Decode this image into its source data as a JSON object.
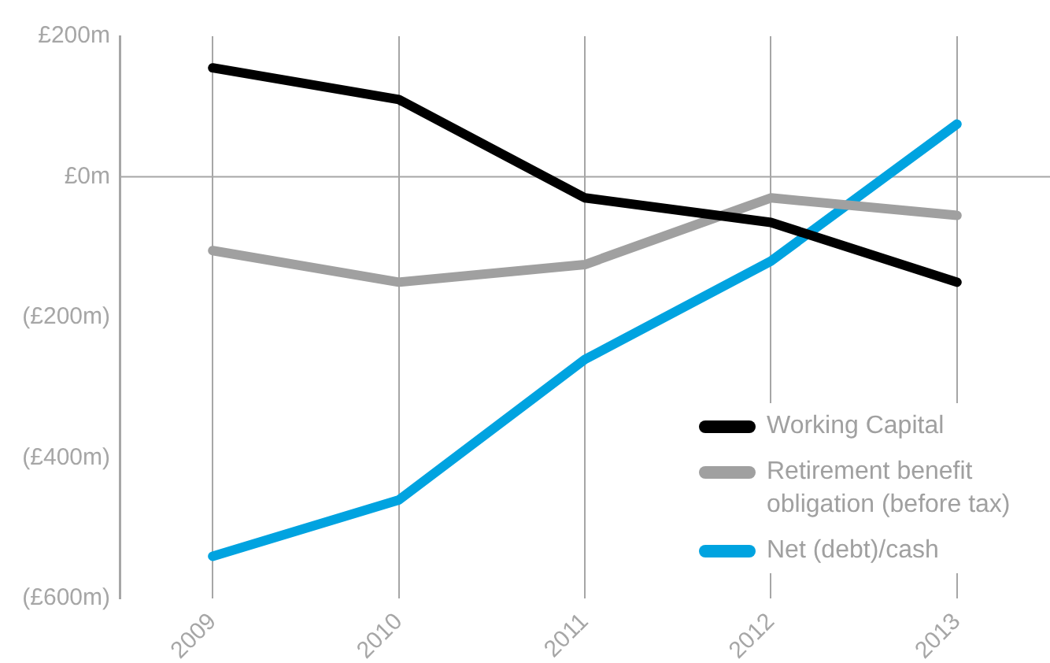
{
  "chart_data": {
    "type": "line",
    "categories": [
      "2009",
      "2010",
      "2011",
      "2012",
      "2013"
    ],
    "series": [
      {
        "name": "Working Capital",
        "color": "#000000",
        "values": [
          155,
          110,
          -30,
          -65,
          -150
        ]
      },
      {
        "name": "Retirement benefit obligation (before tax)",
        "color": "#a0a0a0",
        "values": [
          -105,
          -150,
          -125,
          -30,
          -55
        ]
      },
      {
        "name": "Net (debt)/cash",
        "color": "#00a3e0",
        "values": [
          -540,
          -460,
          -260,
          -120,
          75
        ]
      }
    ],
    "ylim": [
      -600,
      200
    ],
    "yticks": [
      {
        "value": 200,
        "label": "£200m"
      },
      {
        "value": 0,
        "label": "£0m"
      },
      {
        "value": -200,
        "label": "(£200m)"
      },
      {
        "value": -400,
        "label": "(£400m)"
      },
      {
        "value": -600,
        "label": "(£600m)"
      }
    ],
    "ref_lines": [
      {
        "axis": "y",
        "value": 0,
        "color": "#a6a6a6"
      }
    ],
    "grid": "x",
    "legend": "bottom right",
    "marker": "none",
    "line_style": "solid"
  }
}
